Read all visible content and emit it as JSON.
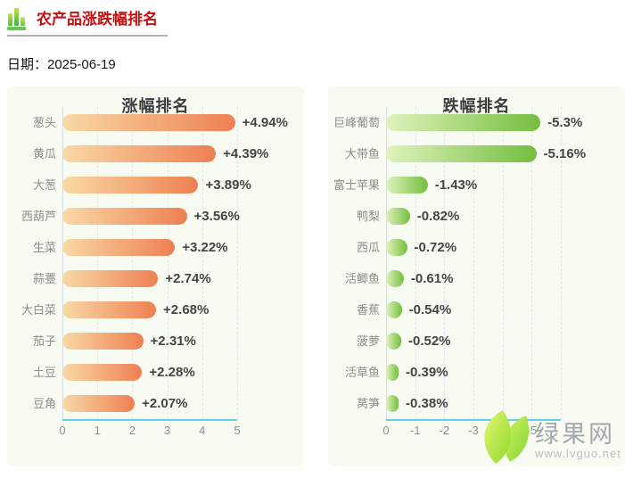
{
  "header": {
    "title": "农产品涨跌幅排名",
    "date": "日期：2025-06-19"
  },
  "chart_data": [
    {
      "type": "bar",
      "orientation": "horizontal",
      "title": "涨幅排名",
      "categories": [
        "葱头",
        "黄瓜",
        "大葱",
        "西葫芦",
        "生菜",
        "蒜薹",
        "大白菜",
        "茄子",
        "土豆",
        "豆角"
      ],
      "values": [
        4.94,
        4.39,
        3.89,
        3.56,
        3.22,
        2.74,
        2.68,
        2.31,
        2.28,
        2.07
      ],
      "value_labels": [
        "+4.94%",
        "+4.39%",
        "+3.89%",
        "+3.56%",
        "+3.22%",
        "+2.74%",
        "+2.68%",
        "+2.31%",
        "+2.28%",
        "+2.07%"
      ],
      "xlim": [
        0,
        5
      ],
      "ticks": [
        "0",
        "1",
        "2",
        "3",
        "4",
        "5"
      ],
      "grid": "dashed-vertical",
      "bar_gradient": [
        "#f9d9a6",
        "#ee8052"
      ]
    },
    {
      "type": "bar",
      "orientation": "horizontal",
      "title": "跌幅排名",
      "categories": [
        "巨峰葡萄",
        "大带鱼",
        "富士苹果",
        "鸭梨",
        "西瓜",
        "活鲫鱼",
        "香蕉",
        "菠萝",
        "活草鱼",
        "莴笋"
      ],
      "values": [
        5.3,
        5.16,
        1.43,
        0.82,
        0.72,
        0.61,
        0.54,
        0.52,
        0.39,
        0.38
      ],
      "value_labels": [
        "-5.3%",
        "-5.16%",
        "-1.43%",
        "-0.82%",
        "-0.72%",
        "-0.61%",
        "-0.54%",
        "-0.52%",
        "-0.39%",
        "-0.38%"
      ],
      "xlim": [
        0,
        -5
      ],
      "ticks": [
        "0",
        "-1",
        "-2",
        "-3",
        "-4",
        "-5"
      ],
      "grid": "dashed-vertical",
      "bar_gradient": [
        "#dff3bc",
        "#74be3f"
      ]
    }
  ],
  "watermark": {
    "site_name": "绿果网",
    "site_url": "www.lvguo.net"
  },
  "colors": {
    "header_title": "#c50f0f",
    "x_axis_line": "#5fd4e8",
    "rise_bar_start": "#f9d9a6",
    "rise_bar_end": "#ee8052",
    "fall_bar_start": "#dff3bc",
    "fall_bar_end": "#74be3f",
    "panel_background": "#f8fbf2"
  }
}
